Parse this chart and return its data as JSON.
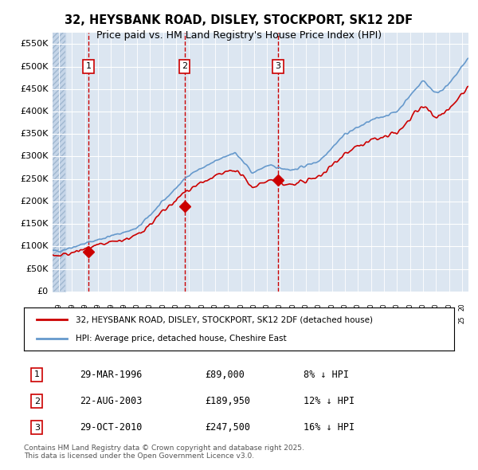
{
  "title_line1": "32, HEYSBANK ROAD, DISLEY, STOCKPORT, SK12 2DF",
  "title_line2": "Price paid vs. HM Land Registry's House Price Index (HPI)",
  "title_fontsize": 11,
  "subtitle_fontsize": 9.5,
  "background_color": "#dce6f1",
  "plot_bg_color": "#dce6f1",
  "hatch_color": "#b8cce4",
  "ylim": [
    0,
    575000
  ],
  "yticks": [
    0,
    50000,
    100000,
    150000,
    200000,
    250000,
    300000,
    350000,
    400000,
    450000,
    500000,
    550000
  ],
  "ytick_labels": [
    "£0",
    "£50K",
    "£100K",
    "£150K",
    "£200K",
    "£250K",
    "£300K",
    "£350K",
    "£400K",
    "£450K",
    "£500K",
    "£550K"
  ],
  "hpi_color": "#6699cc",
  "price_color": "#cc0000",
  "marker_color": "#cc0000",
  "vline_color": "#cc0000",
  "grid_color": "#ffffff",
  "purchases": [
    {
      "date_num": 1996.25,
      "price": 89000,
      "label": "1"
    },
    {
      "date_num": 2003.65,
      "price": 189950,
      "label": "2"
    },
    {
      "date_num": 2010.83,
      "price": 247500,
      "label": "3"
    }
  ],
  "vline_dates": [
    1996.25,
    2003.65,
    2010.83
  ],
  "legend_line1": "32, HEYSBANK ROAD, DISLEY, STOCKPORT, SK12 2DF (detached house)",
  "legend_line2": "HPI: Average price, detached house, Cheshire East",
  "table_entries": [
    {
      "num": "1",
      "date": "29-MAR-1996",
      "price": "£89,000",
      "pct": "8% ↓ HPI"
    },
    {
      "num": "2",
      "date": "22-AUG-2003",
      "price": "£189,950",
      "pct": "12% ↓ HPI"
    },
    {
      "num": "3",
      "date": "29-OCT-2010",
      "price": "£247,500",
      "pct": "16% ↓ HPI"
    }
  ],
  "footnote": "Contains HM Land Registry data © Crown copyright and database right 2025.\nThis data is licensed under the Open Government Licence v3.0.",
  "xmin": 1993.5,
  "xmax": 2025.5
}
